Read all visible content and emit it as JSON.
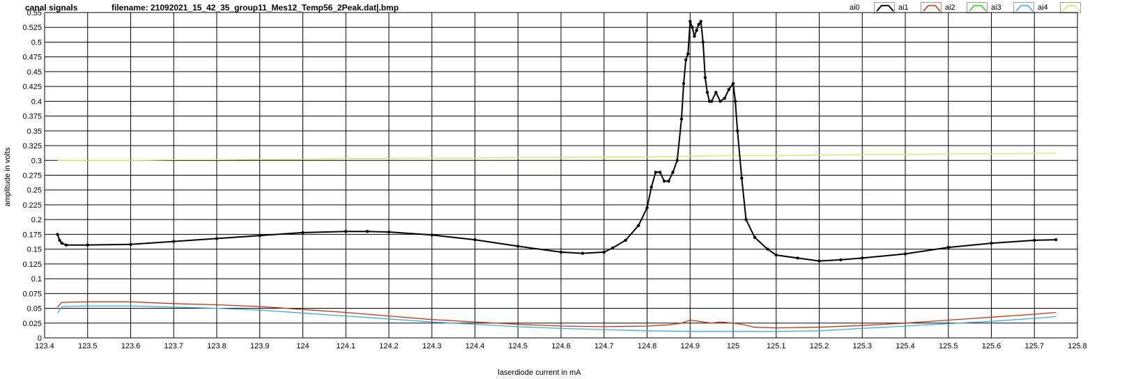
{
  "header": {
    "title": "canal signals",
    "filename": "filename: 21092021_15_42_35_group11_Mes12_Temp56_2Peak.dat|.bmp"
  },
  "legend": [
    {
      "label": "ai0",
      "color": "#000000"
    },
    {
      "label": "ai1",
      "color": "#cc3300"
    },
    {
      "label": "ai2",
      "color": "#22dd00"
    },
    {
      "label": "ai3",
      "color": "#33aaee"
    },
    {
      "label": "ai4",
      "color": "#ccee55"
    }
  ],
  "chart_data": {
    "type": "line",
    "xlabel": "laserdiode current in mA",
    "ylabel": "amplitude in volts",
    "xlim": [
      123.4,
      125.8
    ],
    "ylim": [
      0,
      0.55
    ],
    "x_ticks": [
      "123.4",
      "123.5",
      "123.6",
      "123.7",
      "123.8",
      "123.9",
      "124",
      "124.1",
      "124.2",
      "124.3",
      "124.4",
      "124.5",
      "124.6",
      "124.7",
      "124.8",
      "124.9",
      "125",
      "125.1",
      "125.2",
      "125.3",
      "125.4",
      "125.5",
      "125.6",
      "125.7",
      "125.8"
    ],
    "y_ticks": [
      "0",
      "0.025",
      "0.05",
      "0.075",
      "0.1",
      "0.125",
      "0.15",
      "0.175",
      "0.2",
      "0.225",
      "0.25",
      "0.275",
      "0.3",
      "0.325",
      "0.35",
      "0.375",
      "0.4",
      "0.425",
      "0.45",
      "0.475",
      "0.5",
      "0.525",
      "0.55"
    ],
    "grid": true,
    "legend_position": "top-right",
    "series": [
      {
        "name": "ai0",
        "color": "#000000",
        "markers": true,
        "x": [
          123.43,
          123.435,
          123.44,
          123.45,
          123.5,
          123.6,
          123.7,
          123.8,
          123.9,
          124.0,
          124.1,
          124.15,
          124.2,
          124.3,
          124.4,
          124.5,
          124.6,
          124.65,
          124.7,
          124.72,
          124.75,
          124.78,
          124.8,
          124.81,
          124.82,
          124.83,
          124.84,
          124.85,
          124.86,
          124.87,
          124.88,
          124.885,
          124.89,
          124.895,
          124.9,
          124.905,
          124.91,
          124.915,
          124.92,
          124.925,
          124.93,
          124.935,
          124.94,
          124.945,
          124.95,
          124.96,
          124.97,
          124.98,
          124.99,
          125.0,
          125.005,
          125.01,
          125.02,
          125.03,
          125.05,
          125.08,
          125.1,
          125.15,
          125.2,
          125.25,
          125.3,
          125.4,
          125.5,
          125.6,
          125.7,
          125.75
        ],
        "y": [
          0.175,
          0.165,
          0.16,
          0.157,
          0.157,
          0.158,
          0.163,
          0.168,
          0.173,
          0.178,
          0.18,
          0.18,
          0.179,
          0.174,
          0.166,
          0.155,
          0.145,
          0.143,
          0.145,
          0.152,
          0.165,
          0.19,
          0.22,
          0.255,
          0.28,
          0.28,
          0.265,
          0.265,
          0.28,
          0.3,
          0.37,
          0.43,
          0.47,
          0.48,
          0.535,
          0.525,
          0.51,
          0.52,
          0.53,
          0.535,
          0.5,
          0.44,
          0.415,
          0.4,
          0.4,
          0.415,
          0.4,
          0.405,
          0.42,
          0.43,
          0.4,
          0.35,
          0.27,
          0.2,
          0.17,
          0.15,
          0.14,
          0.135,
          0.13,
          0.132,
          0.135,
          0.142,
          0.153,
          0.16,
          0.165,
          0.166
        ]
      },
      {
        "name": "ai1",
        "color": "#cc3300",
        "markers": false,
        "x": [
          123.43,
          123.44,
          123.5,
          123.6,
          123.7,
          123.8,
          123.9,
          124.0,
          124.1,
          124.2,
          124.3,
          124.4,
          124.5,
          124.6,
          124.7,
          124.8,
          124.85,
          124.88,
          124.9,
          124.92,
          124.95,
          124.97,
          125.0,
          125.02,
          125.05,
          125.1,
          125.2,
          125.3,
          125.4,
          125.5,
          125.6,
          125.7,
          125.75
        ],
        "y": [
          0.052,
          0.06,
          0.061,
          0.061,
          0.058,
          0.056,
          0.053,
          0.048,
          0.043,
          0.037,
          0.031,
          0.027,
          0.023,
          0.02,
          0.019,
          0.02,
          0.022,
          0.025,
          0.03,
          0.028,
          0.025,
          0.027,
          0.025,
          0.023,
          0.018,
          0.017,
          0.018,
          0.021,
          0.025,
          0.03,
          0.035,
          0.04,
          0.043
        ]
      },
      {
        "name": "ai3",
        "color": "#33aaee",
        "markers": false,
        "x": [
          123.43,
          123.44,
          123.5,
          123.6,
          123.7,
          123.8,
          123.9,
          124.0,
          124.1,
          124.2,
          124.3,
          124.4,
          124.5,
          124.6,
          124.7,
          124.8,
          124.9,
          125.0,
          125.1,
          125.2,
          125.3,
          125.4,
          125.5,
          125.6,
          125.7,
          125.75
        ],
        "y": [
          0.042,
          0.053,
          0.054,
          0.054,
          0.052,
          0.05,
          0.047,
          0.042,
          0.037,
          0.032,
          0.027,
          0.023,
          0.019,
          0.016,
          0.014,
          0.012,
          0.011,
          0.011,
          0.011,
          0.012,
          0.016,
          0.02,
          0.024,
          0.028,
          0.033,
          0.036
        ]
      },
      {
        "name": "ai4",
        "color": "#ccee55",
        "markers": false,
        "x": [
          123.43,
          123.5,
          123.6,
          123.7,
          123.8,
          123.9,
          124.0,
          124.1,
          124.2,
          124.3,
          124.4,
          124.5,
          124.6,
          124.7,
          124.8,
          124.9,
          125.0,
          125.1,
          125.2,
          125.3,
          125.4,
          125.5,
          125.6,
          125.7,
          125.75
        ],
        "y": [
          0.3,
          0.3,
          0.3,
          0.301,
          0.301,
          0.302,
          0.302,
          0.303,
          0.303,
          0.304,
          0.304,
          0.305,
          0.305,
          0.306,
          0.306,
          0.307,
          0.308,
          0.308,
          0.309,
          0.31,
          0.31,
          0.311,
          0.311,
          0.312,
          0.312
        ]
      }
    ]
  }
}
